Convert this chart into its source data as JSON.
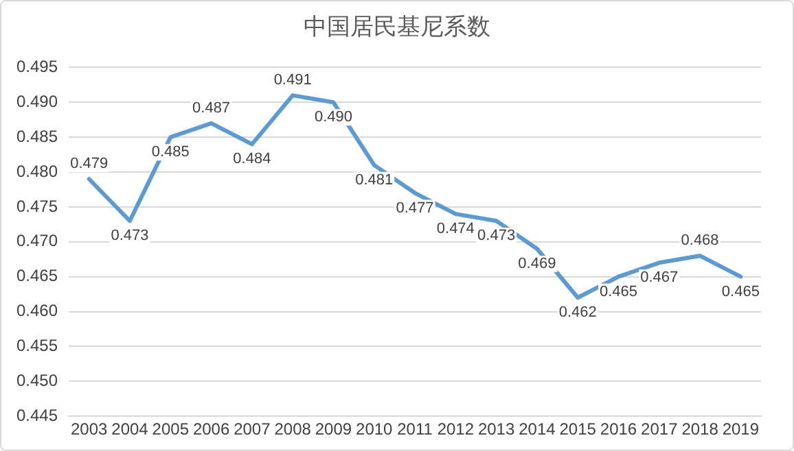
{
  "chart_data": {
    "type": "line",
    "title": "中国居民基尼系数",
    "categories": [
      "2003",
      "2004",
      "2005",
      "2006",
      "2007",
      "2008",
      "2009",
      "2010",
      "2011",
      "2012",
      "2013",
      "2014",
      "2015",
      "2016",
      "2017",
      "2018",
      "2019"
    ],
    "series": [
      {
        "color": "#5b9bd5",
        "values": [
          0.479,
          0.473,
          0.485,
          0.487,
          0.484,
          0.491,
          0.49,
          0.481,
          0.477,
          0.474,
          0.473,
          0.469,
          0.462,
          0.465,
          0.467,
          0.468,
          0.465
        ],
        "value_labels": [
          "0.479",
          "0.473",
          "0.485",
          "0.487",
          "0.484",
          "0.491",
          "0.490",
          "0.481",
          "0.477",
          "0.474",
          "0.473",
          "0.469",
          "0.462",
          "0.465",
          "0.467",
          "0.468",
          "0.465"
        ]
      }
    ],
    "ylim": [
      0.445,
      0.495
    ],
    "yticks": [
      0.445,
      {
        "value": 0.45,
        "label": "0.450"
      },
      0.455,
      {
        "value": 0.46,
        "label": "0.460"
      },
      0.465,
      {
        "value": 0.47,
        "label": "0.470"
      },
      0.475,
      {
        "value": 0.48,
        "label": "0.480"
      },
      0.485,
      {
        "value": 0.49,
        "label": "0.490"
      },
      0.495
    ],
    "grid": "y",
    "legend": false,
    "marker": "none",
    "line_style": "solid"
  }
}
